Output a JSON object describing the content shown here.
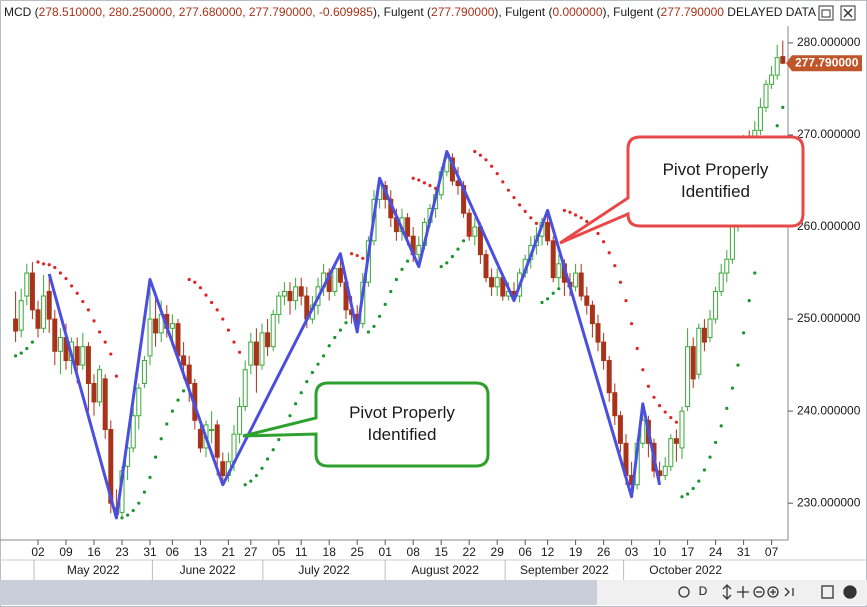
{
  "header": {
    "segments": [
      {
        "text": "MCD (",
        "color": "#1a1a1a"
      },
      {
        "text": "278.510000, 280.250000, 277.680000, 277.790000, -0.609985",
        "color": "#a8321a"
      },
      {
        "text": "), Fulgent  (",
        "color": "#1a1a1a"
      },
      {
        "text": "277.790000",
        "color": "#a8321a"
      },
      {
        "text": "), Fulgent  (",
        "color": "#1a1a1a"
      },
      {
        "text": "0.000000",
        "color": "#a8321a"
      },
      {
        "text": "), Fulgent  (",
        "color": "#1a1a1a"
      },
      {
        "text": "277.790000",
        "color": "#a8321a"
      },
      {
        "text": "  DELAYED DATA",
        "color": "#1a1a1a"
      }
    ]
  },
  "toolbar": {
    "period": "D"
  },
  "chart_data": {
    "type": "candlestick",
    "ylim": [
      226,
      281.4
    ],
    "yticks": [
      {
        "value": 230,
        "label": "230.000000"
      },
      {
        "value": 240,
        "label": "240.000000"
      },
      {
        "value": 250,
        "label": "250.000000"
      },
      {
        "value": 260,
        "label": "260.000000"
      },
      {
        "value": 270,
        "label": "270.000000"
      },
      {
        "value": 280,
        "label": "280.000000"
      }
    ],
    "last_price": {
      "value": 277.79,
      "label": "277.790000",
      "color": "#c0552a"
    },
    "up_color": "#3aa83a",
    "down_color": "#a8321a",
    "months": [
      "May 2022",
      "June 2022",
      "July 2022",
      "August 2022",
      "September 2022",
      "October 2022"
    ],
    "categories": [
      null,
      null,
      null,
      null,
      "02",
      null,
      null,
      null,
      null,
      "09",
      null,
      null,
      null,
      null,
      "16",
      null,
      null,
      null,
      null,
      "23",
      null,
      null,
      null,
      null,
      "31",
      null,
      null,
      null,
      "06",
      null,
      null,
      null,
      null,
      "13",
      null,
      null,
      null,
      null,
      "21",
      null,
      null,
      null,
      "27",
      null,
      null,
      null,
      null,
      "05",
      null,
      null,
      null,
      "11",
      null,
      null,
      null,
      null,
      "18",
      null,
      null,
      null,
      null,
      "25",
      null,
      null,
      null,
      null,
      "01",
      null,
      null,
      null,
      null,
      "08",
      null,
      null,
      null,
      null,
      "15",
      null,
      null,
      null,
      null,
      "22",
      null,
      null,
      null,
      null,
      "29",
      null,
      null,
      null,
      null,
      "06",
      null,
      null,
      null,
      "12",
      null,
      null,
      null,
      null,
      "19",
      null,
      null,
      null,
      null,
      "26",
      null,
      null,
      null,
      null,
      "03",
      null,
      null,
      null,
      null,
      "10",
      null,
      null,
      null,
      null,
      "17",
      null,
      null,
      null,
      null,
      "24",
      null,
      null,
      null,
      null,
      "31",
      null,
      null,
      null,
      null,
      "07",
      null,
      null
    ],
    "open": [
      250,
      248.8,
      252.5,
      255,
      251,
      249,
      253,
      250,
      246.5,
      248,
      245.5,
      247,
      245,
      247,
      243,
      241,
      243.5,
      238,
      229.5,
      229,
      234,
      236,
      239.5,
      243,
      246,
      250,
      248.5,
      250.5,
      249,
      249.5,
      246,
      245,
      243,
      238,
      236,
      238,
      238.5,
      234.5,
      233,
      234.5,
      237.5,
      240.5,
      245,
      247.5,
      245,
      248.5,
      247,
      250.5,
      252.5,
      253,
      252,
      253.5,
      252.5,
      250,
      251.5,
      253.5,
      255,
      253,
      255.5,
      254,
      251,
      250.5,
      249.5,
      254,
      258.5,
      263,
      264.5,
      263,
      261,
      259.5,
      261,
      259,
      257,
      258,
      260.5,
      262,
      263.5,
      266,
      267.5,
      265,
      264.5,
      261.5,
      259,
      260,
      257,
      254.5,
      253.5,
      254.5,
      252.5,
      253,
      252.5,
      255,
      256.5,
      258,
      259,
      260.5,
      258.5,
      254.5,
      256,
      254,
      253.5,
      255,
      252.5,
      251.5,
      249.5,
      247.5,
      245.5,
      242,
      239.5,
      236.5,
      233,
      232,
      236.5,
      239,
      236.5,
      233.5,
      233,
      234,
      237,
      236,
      240.5,
      247,
      244,
      249,
      248,
      250,
      253,
      255,
      256.5,
      260,
      266,
      269,
      267,
      270.5,
      273,
      275.5,
      276.5,
      278.51
    ],
    "high": [
      253,
      253.3,
      256,
      256.2,
      252,
      254.8,
      254.9,
      251,
      249,
      249.5,
      248,
      248,
      248.5,
      247.5,
      244,
      245,
      244,
      239,
      231.5,
      234,
      237.5,
      240.5,
      243,
      246,
      254.3,
      253,
      252,
      251.5,
      250.5,
      250,
      247.5,
      246,
      243.5,
      239,
      239,
      240,
      239,
      235.5,
      235.5,
      238.5,
      241.5,
      245.5,
      248.5,
      249,
      249.5,
      250,
      251,
      253,
      254,
      254,
      254.5,
      254.5,
      253.5,
      252.5,
      254.5,
      256,
      255.5,
      256,
      257.1,
      254.5,
      252.5,
      251.5,
      255,
      259,
      264,
      265.3,
      265,
      264,
      262,
      262,
      261.5,
      260,
      259,
      261,
      262.5,
      264,
      266.5,
      268.2,
      268,
      266.5,
      265,
      262,
      261,
      260.5,
      257.5,
      255.5,
      255.5,
      255,
      254,
      254,
      255.5,
      257,
      259,
      260,
      261,
      261.8,
      259,
      257,
      256.5,
      255,
      256,
      256,
      253.5,
      252,
      250.5,
      248.5,
      246,
      243,
      240,
      237.5,
      234.5,
      237,
      240.8,
      239.5,
      237,
      234.5,
      235,
      237.5,
      238,
      240.5,
      249,
      248,
      249.5,
      250,
      251,
      253.5,
      256,
      257.5,
      261,
      267,
      270,
      270.5,
      271.5,
      274,
      276,
      277.5,
      279.8,
      280.25
    ],
    "low": [
      247.5,
      248,
      251.5,
      250,
      248,
      248.5,
      248.5,
      245,
      244,
      244.5,
      244,
      243,
      244.5,
      240,
      239.5,
      240.5,
      237,
      228.9,
      228.4,
      228.6,
      232.5,
      235.5,
      238,
      242.5,
      245,
      247,
      247.5,
      248,
      247,
      245.5,
      243.5,
      241,
      238,
      235.5,
      235,
      236.5,
      233,
      232,
      232.3,
      233.5,
      236.5,
      240,
      244,
      242,
      244.5,
      246,
      246.5,
      249.5,
      251.5,
      250.5,
      251,
      251.5,
      249,
      249.5,
      250.5,
      252.5,
      252,
      252.5,
      253.5,
      250,
      249.5,
      248.6,
      249,
      253.5,
      258,
      262,
      262,
      260,
      258.5,
      258.5,
      258,
      256.2,
      255.7,
      257.5,
      260,
      261,
      263,
      265.5,
      264.5,
      263.5,
      261,
      258.5,
      258,
      256,
      254,
      252.5,
      252.5,
      252,
      252,
      252,
      251.8,
      254.5,
      255.5,
      257,
      258,
      258,
      254,
      253.5,
      252.5,
      252.5,
      253,
      252,
      250.5,
      248,
      246.5,
      244.5,
      241,
      238.5,
      235.5,
      232,
      230.7,
      231.5,
      236,
      235,
      232.8,
      232,
      232.5,
      233.5,
      234.5,
      234.8,
      240,
      242.5,
      243.5,
      246.5,
      247.5,
      249.5,
      252.5,
      254,
      256,
      259.5,
      265.5,
      266,
      266.5,
      270,
      272.5,
      275,
      276,
      277.68
    ],
    "close": [
      248.7,
      252,
      255,
      251,
      249,
      252.5,
      250,
      246.5,
      248,
      245.5,
      247.5,
      245,
      247,
      243,
      241,
      244.5,
      238,
      230,
      228.8,
      233.5,
      236,
      239.5,
      242.5,
      245.5,
      250,
      248.5,
      250.5,
      249,
      249.5,
      246,
      245,
      243,
      239,
      236,
      238.5,
      238,
      235,
      233,
      234.5,
      237.5,
      240.5,
      244.5,
      247.5,
      245,
      248.5,
      247,
      250.5,
      252.5,
      253,
      252,
      253.5,
      252.5,
      250,
      251.5,
      253.5,
      255,
      253,
      255.5,
      254,
      251,
      250.5,
      249.5,
      254,
      258.5,
      263,
      264.5,
      263,
      261,
      259.5,
      261,
      259,
      257,
      258,
      260.5,
      262,
      263.5,
      266,
      267.5,
      265,
      264.5,
      261.5,
      259,
      260,
      257,
      254.5,
      253.5,
      254.5,
      252.5,
      253,
      252.5,
      255,
      256.5,
      258,
      259,
      260.5,
      258.5,
      254.5,
      256,
      254,
      253.5,
      255,
      252.5,
      251.5,
      249.5,
      247.5,
      245.5,
      242,
      239.5,
      236.5,
      233,
      232,
      236.5,
      239,
      236.5,
      233.5,
      233,
      234,
      237,
      236.5,
      240,
      247,
      243.5,
      249,
      247.5,
      250,
      253,
      255,
      256.5,
      260,
      266,
      269,
      267,
      270.5,
      273,
      275.5,
      276.5,
      278.4,
      277.79
    ],
    "sar": {
      "colors": {
        "above": "#e02424",
        "below": "#17952a"
      },
      "values": [
        246,
        246.3,
        246.8,
        247.5,
        256.2,
        256,
        255.9,
        255.6,
        255,
        254.4,
        253.6,
        252.8,
        251.9,
        251,
        249.8,
        248.6,
        247.5,
        246.2,
        243.8,
        228.4,
        228.7,
        229.2,
        230,
        231.2,
        232.8,
        235,
        237,
        238.6,
        240,
        241.2,
        242.2,
        254.3,
        254,
        253.4,
        252.6,
        251.8,
        251,
        250,
        248.8,
        247.5,
        246.4,
        232,
        232.4,
        233,
        233.8,
        234.8,
        235.8,
        236.9,
        238.2,
        239.5,
        240.8,
        242,
        243.2,
        244.2,
        245.1,
        246,
        247.1,
        248,
        248.8,
        249.6,
        257.1,
        256.9,
        256.6,
        248.6,
        249.2,
        250.3,
        251.6,
        253,
        254.3,
        255.4,
        256.3,
        265.3,
        265.1,
        264.8,
        264.5,
        264.2,
        255.7,
        256.1,
        256.8,
        257.6,
        258.5,
        259.3,
        268.2,
        267.8,
        267.3,
        266.6,
        265.8,
        264.9,
        264,
        263.2,
        262.4,
        261.7,
        261,
        260.4,
        251.8,
        252.2,
        252.8,
        253.3,
        261.8,
        261.6,
        261.3,
        261,
        260.6,
        260,
        259.3,
        258.4,
        257.2,
        255.8,
        254,
        252,
        249.5,
        246.8,
        244.5,
        242.7,
        241.5,
        240.6,
        239.9,
        239.3,
        238.8,
        230.7,
        231,
        231.6,
        232.4,
        233.6,
        235,
        236.6,
        238.4,
        240.3,
        242.5,
        245,
        248.5,
        252,
        255,
        262,
        266,
        268.5,
        271,
        273
      ]
    },
    "zigzag": {
      "color": "#4a4fe0",
      "x": [
        6,
        18,
        24,
        37,
        58,
        61,
        65,
        72,
        77,
        89,
        95,
        110,
        112,
        115
      ],
      "values": [
        254.9,
        228.4,
        254.3,
        232,
        257.1,
        248.6,
        265.3,
        255.7,
        268.2,
        252,
        261.8,
        230.7,
        240.8,
        232
      ]
    },
    "callouts": [
      {
        "lines": [
          "Pivot Properly",
          "Identified"
        ],
        "color": "#e84848"
      },
      {
        "lines": [
          "Pivot Properly",
          "Identified"
        ],
        "color": "#2ea02e"
      }
    ]
  }
}
